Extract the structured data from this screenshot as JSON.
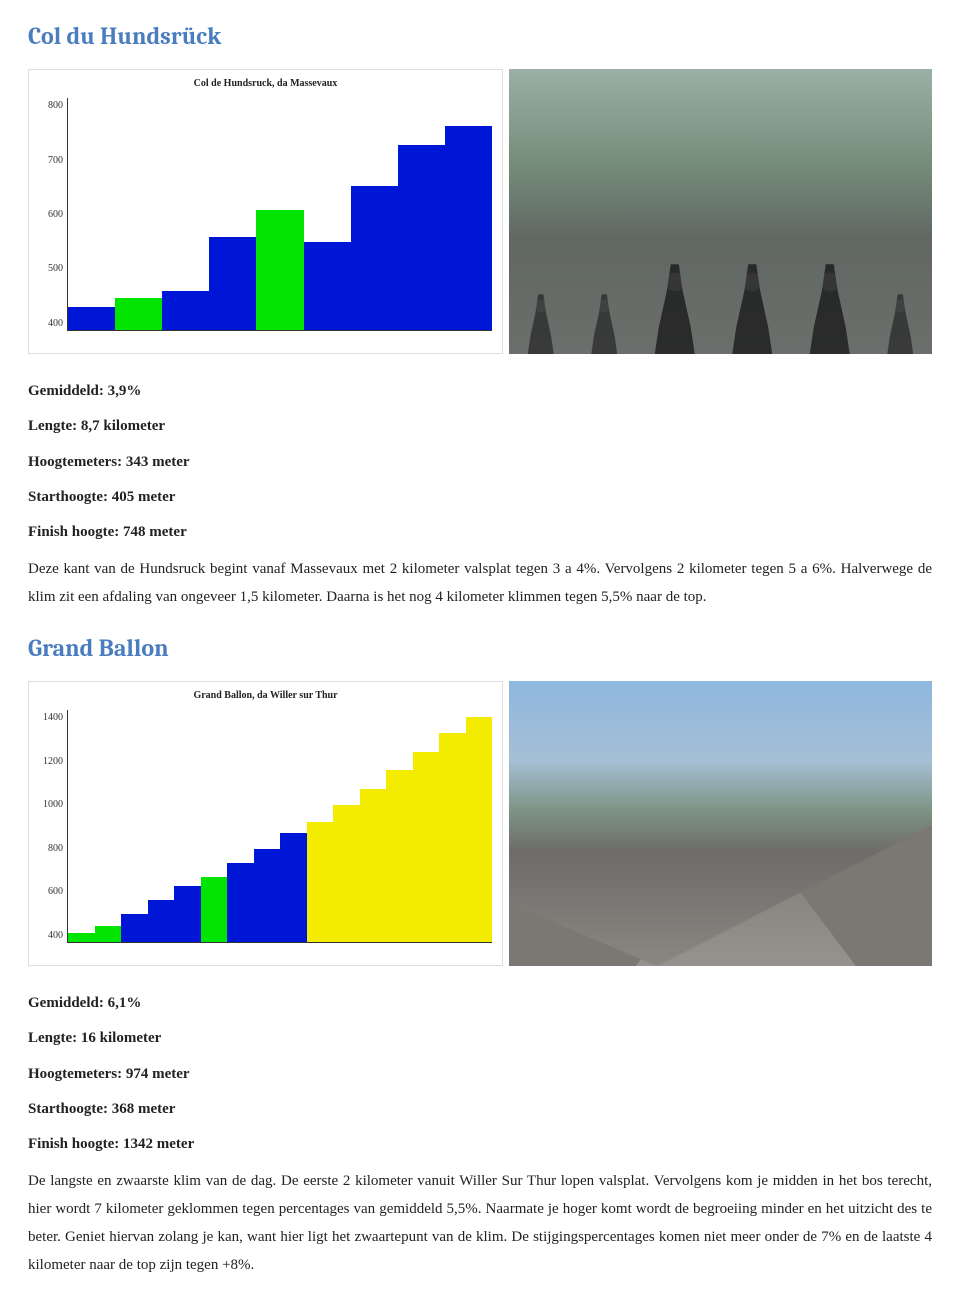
{
  "col1": {
    "title": "Col du Hundsrück",
    "stats": {
      "gemiddeld": "Gemiddeld: 3,9%",
      "lengte": "Lengte: 8,7 kilometer",
      "hoogtemeters": "Hoogtemeters: 343 meter",
      "starthoogte": "Starthoogte: 405 meter",
      "finishhoogte": "Finish hoogte: 748 meter"
    },
    "description": "Deze kant van de Hundsruck begint vanaf Massevaux met 2 kilometer valsplat tegen 3 a 4%. Vervolgens 2 kilometer tegen 5 a 6%. Halverwege de klim zit een afdaling van ongeveer 1,5 kilometer. Daarna is het nog 4 kilometer klimmen tegen 5,5% naar de top.",
    "chart": {
      "title": "Col de Hundsruck, da Massevaux",
      "ylim": [
        400,
        800
      ],
      "yticks": [
        "800",
        "700",
        "600",
        "500",
        "400"
      ],
      "bars": [
        {
          "h": 0.1,
          "color": "#0016d6"
        },
        {
          "h": 0.14,
          "color": "#00e400"
        },
        {
          "h": 0.17,
          "color": "#0016d6"
        },
        {
          "h": 0.4,
          "color": "#0016d6"
        },
        {
          "h": 0.52,
          "color": "#00e400"
        },
        {
          "h": 0.38,
          "color": "#0016d6"
        },
        {
          "h": 0.62,
          "color": "#0016d6"
        },
        {
          "h": 0.8,
          "color": "#0016d6"
        },
        {
          "h": 0.88,
          "color": "#0016d6"
        }
      ]
    }
  },
  "col2": {
    "title": "Grand Ballon",
    "stats": {
      "gemiddeld": "Gemiddeld: 6,1%",
      "lengte": "Lengte: 16 kilometer",
      "hoogtemeters": "Hoogtemeters: 974 meter",
      "starthoogte": "Starthoogte: 368 meter",
      "finishhoogte": "Finish hoogte: 1342 meter"
    },
    "description": "De langste en zwaarste klim van de dag. De eerste 2 kilometer vanuit Willer Sur Thur lopen valsplat. Vervolgens kom je midden in het bos terecht, hier wordt 7 kilometer geklommen tegen percentages van gemiddeld 5,5%. Naarmate je hoger komt wordt de begroeiing minder en het uitzicht des te beter. Geniet hiervan zolang je kan, want hier ligt het zwaartepunt van de klim. De stijgingspercentages komen niet meer onder de 7% en de laatste 4 kilometer naar de top zijn tegen +8%.",
    "chart": {
      "title": "Grand Ballon, da Willer sur Thur",
      "ylim": [
        300,
        1400
      ],
      "yticks": [
        "1400",
        "1200",
        "1000",
        "800",
        "600",
        "400"
      ],
      "bars": [
        {
          "h": 0.04,
          "color": "#00e400"
        },
        {
          "h": 0.07,
          "color": "#00e400"
        },
        {
          "h": 0.12,
          "color": "#0016d6"
        },
        {
          "h": 0.18,
          "color": "#0016d6"
        },
        {
          "h": 0.24,
          "color": "#0016d6"
        },
        {
          "h": 0.28,
          "color": "#00e400"
        },
        {
          "h": 0.34,
          "color": "#0016d6"
        },
        {
          "h": 0.4,
          "color": "#0016d6"
        },
        {
          "h": 0.47,
          "color": "#0016d6"
        },
        {
          "h": 0.52,
          "color": "#f4ec00"
        },
        {
          "h": 0.59,
          "color": "#f4ec00"
        },
        {
          "h": 0.66,
          "color": "#f4ec00"
        },
        {
          "h": 0.74,
          "color": "#f4ec00"
        },
        {
          "h": 0.82,
          "color": "#f4ec00"
        },
        {
          "h": 0.9,
          "color": "#f4ec00"
        },
        {
          "h": 0.97,
          "color": "#f4ec00"
        }
      ]
    }
  }
}
